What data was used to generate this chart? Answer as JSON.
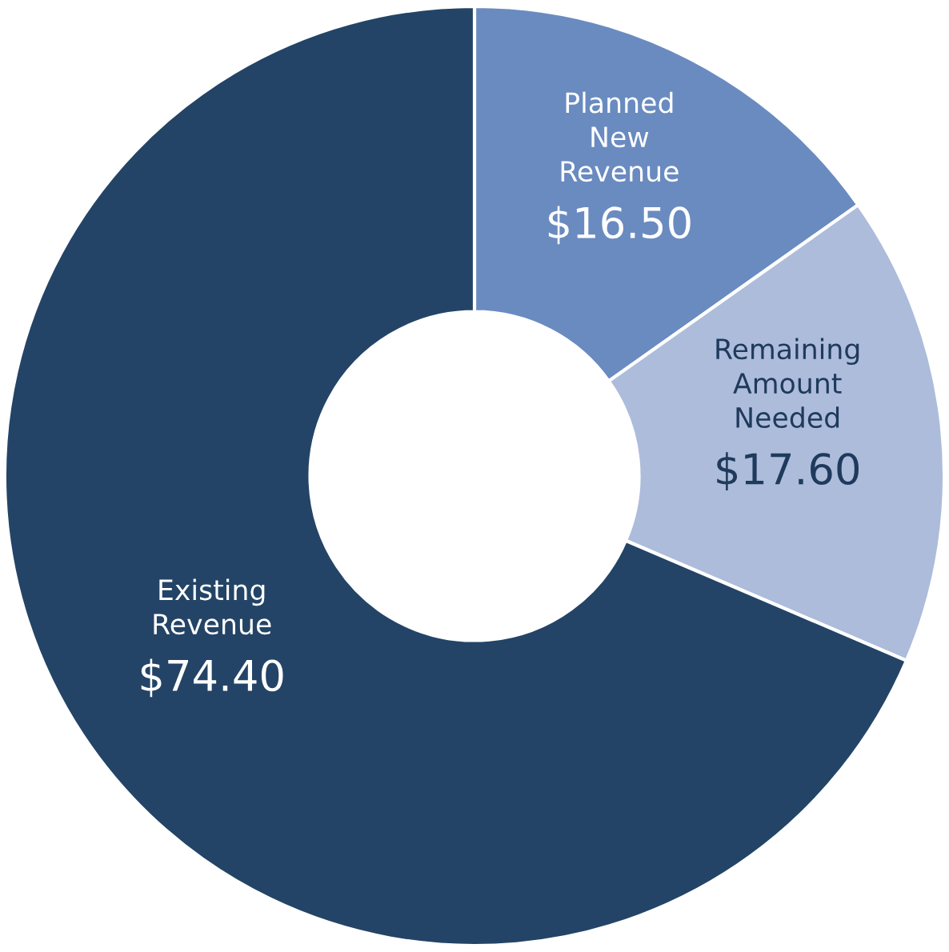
{
  "chart_data": {
    "type": "donut",
    "categories": [
      "Planned New Revenue",
      "Remaining Amount Needed",
      "Existing Revenue"
    ],
    "values": [
      16.5,
      17.6,
      74.4
    ],
    "value_labels": [
      "$16.50",
      "$17.60",
      "$74.40"
    ],
    "colors": [
      "#6a8bc0",
      "#adbcdb",
      "#234466"
    ]
  }
}
